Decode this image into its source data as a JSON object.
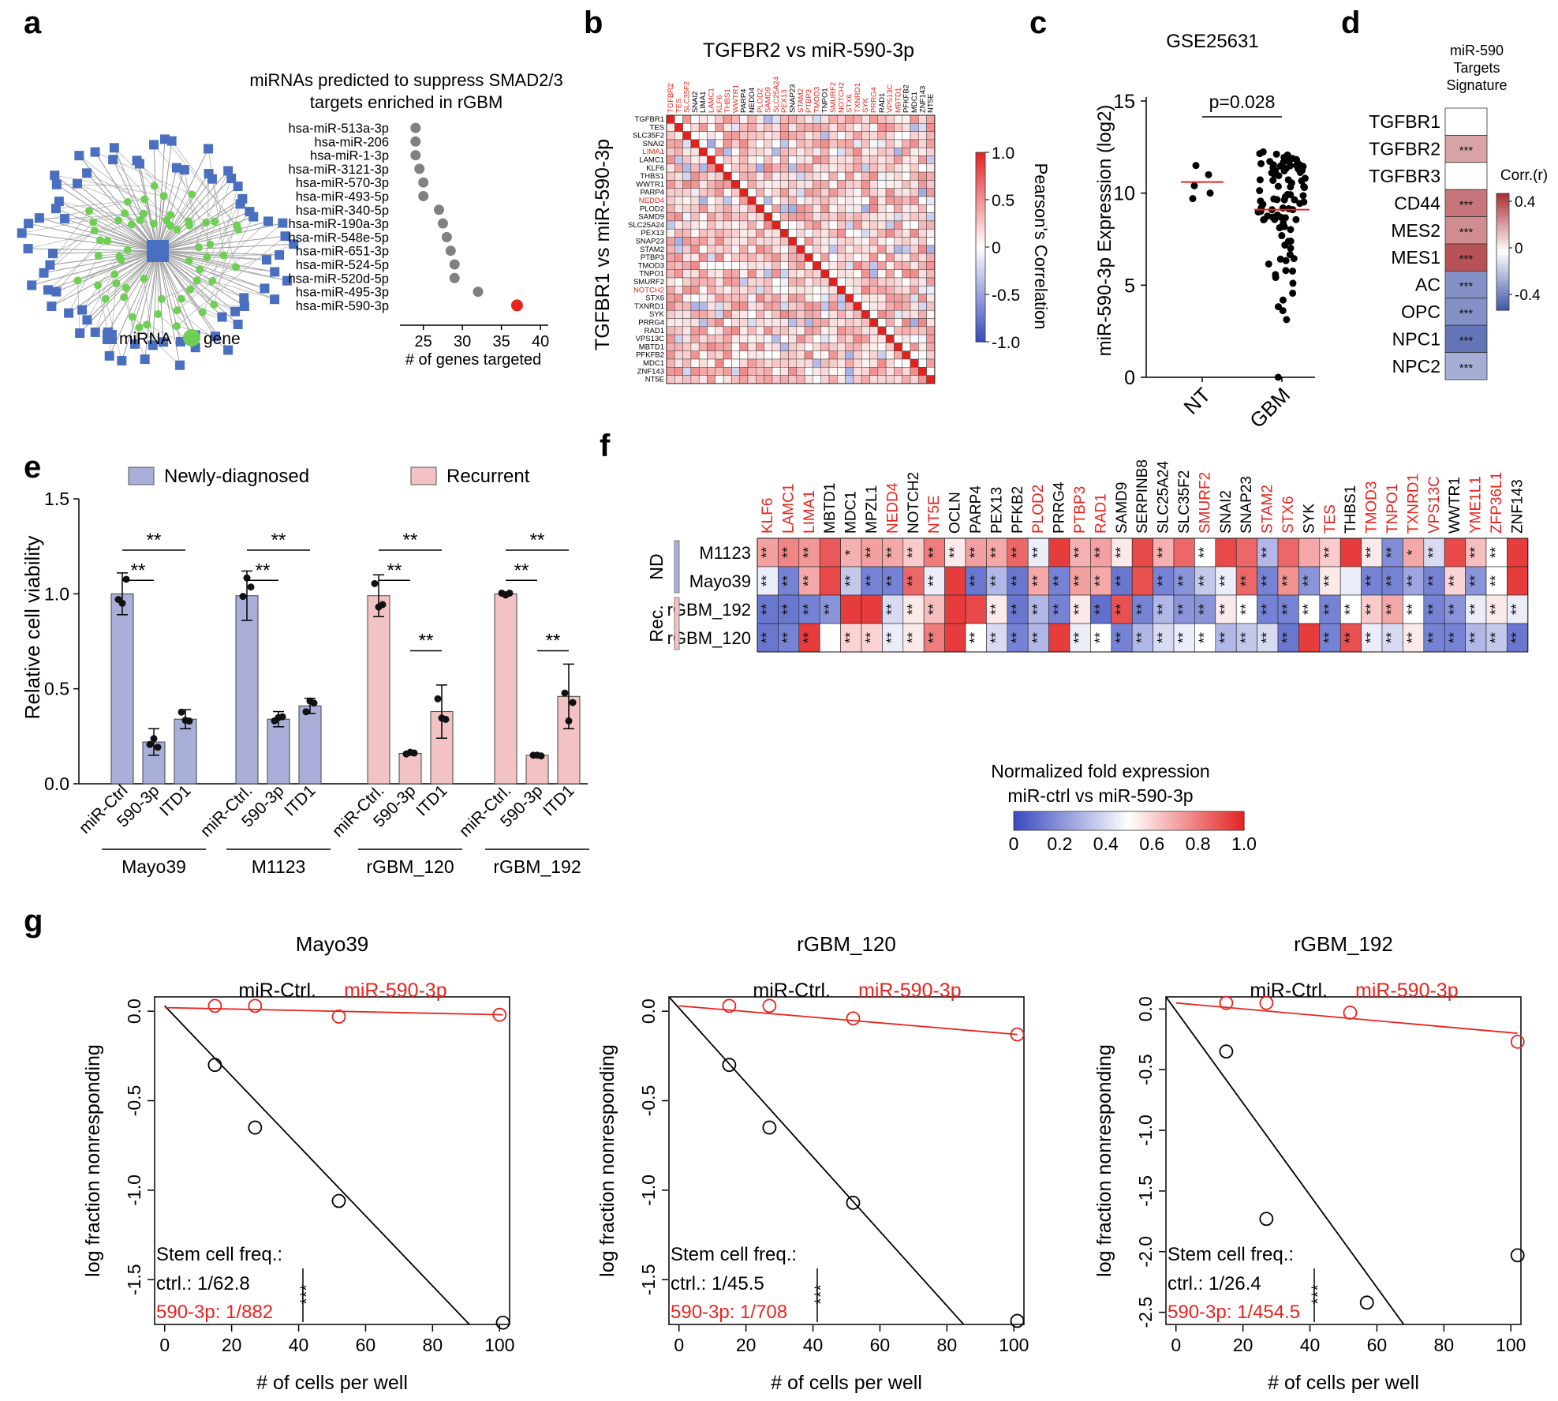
{
  "panel_labels": [
    "a",
    "b",
    "c",
    "d",
    "e",
    "f",
    "g"
  ],
  "colors": {
    "red": "#e8241f",
    "blue": "#3f4fa8",
    "grey": "#808080",
    "net_blue": "#4a6fc1",
    "net_green": "#6fcf55",
    "bar_nd": "#a9afd9",
    "bar_rec": "#f3c2c5"
  },
  "chart_data": [
    {
      "id": "a_network",
      "type": "network",
      "legend": {
        "mirna": "miRNA",
        "gene": "gene"
      }
    },
    {
      "id": "a_dot",
      "type": "scatter",
      "title_lines": [
        "miRNAs predicted to suppress SMAD2/3",
        "targets enriched in rGBM"
      ],
      "xlabel": "# of genes targeted",
      "xlim": [
        22,
        41
      ],
      "xticks": [
        25,
        30,
        35,
        40
      ],
      "categories": [
        "hsa-miR-513a-3p",
        "hsa-miR-206",
        "hsa-miR-1-3p",
        "hsa-miR-3121-3p",
        "hsa-miR-570-3p",
        "hsa-miR-493-5p",
        "hsa-miR-340-5p",
        "hsa-miR-190a-3p",
        "hsa-miR-548e-5p",
        "hsa-miR-651-3p",
        "hsa-miR-524-5p",
        "hsa-miR-520d-5p",
        "hsa-miR-495-3p",
        "hsa-miR-590-3p"
      ],
      "values": [
        24,
        24,
        24,
        24.5,
        25,
        25,
        27,
        27.5,
        28,
        28.5,
        29,
        29,
        32,
        37
      ],
      "highlight": "hsa-miR-590-3p"
    },
    {
      "id": "b",
      "type": "heatmap",
      "title": "TGFBR2 vs miR-590-3p",
      "ylabel": "TGFBR1 vs miR-590-3p",
      "labels": [
        "TGFBR1",
        "TES",
        "SLC35F2",
        "SNAI2",
        "LIMA1",
        "LAMC1",
        "KLF6",
        "THBS1",
        "WWTR1",
        "PARP4",
        "NEDD4",
        "PLOD2",
        "SAMD9",
        "SLC25A24",
        "PEX13",
        "SNAP23",
        "STAM2",
        "PTBP3",
        "TMOD3",
        "TNPO1",
        "SMURF2",
        "NOTCH2",
        "STX6",
        "TXNRD1",
        "SYK",
        "PRRG4",
        "RAD1",
        "VPS13C",
        "MBTD1",
        "PFKFB2",
        "MDC1",
        "ZNF143",
        "NT5E"
      ],
      "row_red": [
        "LIMA1",
        "NEDD4",
        "NOTCH2"
      ],
      "col_labels": [
        "TGFBR2",
        "TES",
        "SLC35F2",
        "SNAI2",
        "LIMA1",
        "LAMC1",
        "KLF6",
        "THBS1",
        "WWTR1",
        "PARP4",
        "NEDD4",
        "PLOD2",
        "SAMD9",
        "SLC25A24",
        "PEX13",
        "SNAP23",
        "STAM2",
        "PTBP3",
        "TMOD3",
        "TNPO1",
        "SMURF2",
        "NOTCH2",
        "STX6",
        "TXNRD1",
        "SYK",
        "PRRG4",
        "RAD1",
        "VPS13C",
        "MBTD1",
        "PFKFB2",
        "MDC1",
        "ZNF143",
        "NT5E"
      ],
      "col_red": [
        "TGFBR2",
        "TES",
        "SLC35F2",
        "LAMC1",
        "KLF6",
        "THBS1",
        "WWTR1",
        "PLOD2",
        "SAMD9",
        "SLC25A24",
        "PEX13",
        "STAM2",
        "PTBP3",
        "TMOD3",
        "SMURF2",
        "NOTCH2",
        "STX6",
        "TXNRD1",
        "SYK",
        "PRRG4",
        "VPS13C",
        "MBTD1"
      ],
      "colorbar": {
        "label": "Pearson's Correlation",
        "ticks": [
          "1.0",
          "0.5",
          "0",
          "-0.5",
          "-1.0"
        ],
        "range": [
          -1,
          1
        ]
      }
    },
    {
      "id": "c",
      "type": "scatter",
      "title": "GSE25631",
      "ylabel": "miR-590-3p Expression (log2)",
      "categories": [
        "NT",
        "GBM"
      ],
      "ylim": [
        0,
        15
      ],
      "yticks": [
        0,
        5,
        10,
        15
      ],
      "pvalue": "p=0.028",
      "NT": [
        11.5,
        11.0,
        10.4,
        10.0,
        9.7
      ],
      "GBM_median": 9.1,
      "NT_median": 10.6
    },
    {
      "id": "d",
      "type": "heatmap",
      "title_lines": [
        "miR-590",
        "Targets",
        "Signature"
      ],
      "rows": [
        "TGFBR1",
        "TGFBR2",
        "TGFBR3",
        "CD44",
        "MES2",
        "MES1",
        "AC",
        "OPC",
        "NPC1",
        "NPC2"
      ],
      "values": [
        0.0,
        0.2,
        0.0,
        0.3,
        0.25,
        0.38,
        -0.3,
        -0.3,
        -0.38,
        -0.22
      ],
      "marks": [
        "",
        "***",
        "",
        "***",
        "***",
        "***",
        "***",
        "***",
        "***",
        "***"
      ],
      "colorbar": {
        "label": "Corr.(r)",
        "ticks": [
          "0.4",
          "0",
          "-0.4"
        ],
        "range": [
          -0.45,
          0.45
        ]
      }
    },
    {
      "id": "e",
      "type": "bar",
      "ylabel": "Relative cell viability",
      "ylim": [
        0,
        1.5
      ],
      "yticks": [
        "0.0",
        "0.5",
        "1.0",
        "1.5"
      ],
      "legend": [
        "Newly-diagnosed",
        "Recurrent"
      ],
      "groups": [
        {
          "name": "Mayo39",
          "kind": "nd",
          "categories": [
            "miR-Ctrl",
            "590-3p",
            "ITD1"
          ],
          "values": [
            1.0,
            0.22,
            0.34
          ],
          "errors": [
            0.11,
            0.07,
            0.05
          ]
        },
        {
          "name": "M1123",
          "kind": "nd",
          "categories": [
            "miR-Ctrl.",
            "590-3p",
            "ITD1"
          ],
          "values": [
            0.99,
            0.34,
            0.41
          ],
          "errors": [
            0.13,
            0.04,
            0.04
          ]
        },
        {
          "name": "rGBM_120",
          "kind": "rec",
          "categories": [
            "miR-Ctrl.",
            "590-3p",
            "ITD1"
          ],
          "values": [
            0.99,
            0.16,
            0.38
          ],
          "errors": [
            0.11,
            0.01,
            0.14
          ]
        },
        {
          "name": "rGBM_192",
          "kind": "rec",
          "categories": [
            "miR-Ctrl.",
            "590-3p",
            "ITD1"
          ],
          "values": [
            1.0,
            0.15,
            0.46
          ],
          "errors": [
            0.01,
            0.01,
            0.17
          ]
        }
      ],
      "sig": "**"
    },
    {
      "id": "f",
      "type": "heatmap",
      "genes": [
        "KLF6",
        "LAMC1",
        "LIMA1",
        "MBTD1",
        "MDC1",
        "MPZL1",
        "NEDD4",
        "NOTCH2",
        "NT5E",
        "OCLN",
        "PARP4",
        "PEX13",
        "PFKB2",
        "PLOD2",
        "PRRG4",
        "PTBP3",
        "RAD1",
        "SAMD9",
        "SERPINB8",
        "SLC25A24",
        "SLC35F2",
        "SMURF2",
        "SNAI2",
        "SNAP23",
        "STAM2",
        "STX6",
        "SYK",
        "TES",
        "THBS1",
        "TMOD3",
        "TNPO1",
        "TXNRD1",
        "VPS13C",
        "WWTR1",
        "YME1L1",
        "ZFP36L1",
        "ZNF143"
      ],
      "genes_red": [
        "KLF6",
        "LAMC1",
        "LIMA1",
        "NEDD4",
        "NT5E",
        "PLOD2",
        "PTBP3",
        "RAD1",
        "SMURF2",
        "STAM2",
        "STX6",
        "TES",
        "TMOD3",
        "TNPO1",
        "TXNRD1",
        "VPS13C",
        "YME1L1",
        "ZFP36L1"
      ],
      "rows": [
        "M1123",
        "Mayo39",
        "rGBM_192",
        "rGBM_120"
      ],
      "row_groups": [
        {
          "label": "ND",
          "rows": [
            0,
            1
          ]
        },
        {
          "label": "Rec.",
          "rows": [
            2,
            3
          ]
        }
      ],
      "values": [
        [
          0.72,
          0.78,
          0.74,
          0.88,
          0.68,
          0.72,
          0.7,
          0.62,
          0.8,
          0.55,
          0.72,
          0.7,
          0.85,
          0.45,
          0.95,
          0.68,
          0.72,
          0.55,
          0.92,
          0.68,
          0.85,
          0.5,
          0.92,
          0.85,
          0.3,
          0.85,
          0.7,
          0.62,
          0.95,
          0.55,
          0.18,
          0.7,
          0.4,
          0.92,
          0.65,
          0.5,
          0.95
        ],
        [
          0.45,
          0.15,
          0.7,
          0.92,
          0.35,
          0.15,
          0.15,
          0.85,
          0.45,
          0.95,
          0.12,
          0.3,
          0.12,
          0.7,
          0.15,
          0.72,
          0.7,
          0.12,
          0.9,
          0.15,
          0.2,
          0.35,
          0.45,
          0.85,
          0.15,
          0.75,
          0.2,
          0.55,
          0.45,
          0.15,
          0.15,
          0.25,
          0.15,
          0.6,
          0.2,
          0.5,
          0.95
        ],
        [
          0.12,
          0.12,
          0.15,
          0.2,
          0.95,
          0.95,
          0.4,
          0.55,
          0.65,
          0.95,
          0.92,
          0.55,
          0.12,
          0.3,
          0.15,
          0.55,
          0.1,
          0.9,
          0.15,
          0.3,
          0.2,
          0.2,
          0.55,
          0.5,
          0.15,
          0.15,
          0.5,
          0.15,
          0.5,
          0.62,
          0.7,
          0.5,
          0.15,
          0.2,
          0.45,
          0.55,
          0.45
        ],
        [
          0.12,
          0.15,
          0.95,
          0.5,
          0.6,
          0.6,
          0.45,
          0.55,
          0.8,
          0.95,
          0.5,
          0.4,
          0.15,
          0.3,
          0.95,
          0.45,
          0.5,
          0.15,
          0.3,
          0.4,
          0.45,
          0.5,
          0.3,
          0.35,
          0.4,
          0.12,
          0.95,
          0.15,
          0.9,
          0.45,
          0.4,
          0.55,
          0.15,
          0.15,
          0.3,
          0.35,
          0.12
        ]
      ],
      "stars": [
        [
          "**",
          "**",
          "**",
          "",
          "*",
          "**",
          "**",
          "**",
          "**",
          "**",
          "**",
          "**",
          "**",
          "**",
          "",
          "**",
          "**",
          "**",
          "",
          "**",
          "",
          "**",
          "",
          "",
          "**",
          "",
          "",
          "**",
          "",
          "**",
          "**",
          "*",
          "**",
          "",
          "**",
          "**",
          ""
        ],
        [
          "**",
          "**",
          "**",
          "",
          "**",
          "**",
          "**",
          "**",
          "**",
          "",
          "**",
          "**",
          "**",
          "**",
          "**",
          "**",
          "**",
          "**",
          "",
          "**",
          "**",
          "**",
          "**",
          "**",
          "**",
          "**",
          "**",
          "**",
          "",
          "**",
          "**",
          "**",
          "**",
          "**",
          "**",
          "**",
          ""
        ],
        [
          "**",
          "**",
          "**",
          "**",
          "",
          "",
          "**",
          "**",
          "**",
          "",
          "",
          "**",
          "**",
          "**",
          "**",
          "**",
          "**",
          "**",
          "**",
          "**",
          "**",
          "**",
          "**",
          "**",
          "**",
          "**",
          "**",
          "**",
          "**",
          "**",
          "**",
          "**",
          "**",
          "**",
          "**",
          "**",
          "**"
        ],
        [
          "**",
          "**",
          "**",
          "",
          "**",
          "**",
          "**",
          "**",
          "**",
          "",
          "**",
          "**",
          "**",
          "**",
          "",
          "**",
          "**",
          "**",
          "**",
          "**",
          "**",
          "**",
          "**",
          "**",
          "**",
          "**",
          "",
          "**",
          "**",
          "**",
          "**",
          "**",
          "**",
          "**",
          "**",
          "**",
          "**"
        ]
      ],
      "colorbar": {
        "title": "Normalized fold expression",
        "subtitle": "miR-ctrl vs miR-590-3p",
        "ticks": [
          "0",
          "0.2",
          "0.4",
          "0.6",
          "0.8",
          "1.0"
        ],
        "range": [
          0,
          1
        ]
      }
    },
    {
      "id": "g",
      "type": "line",
      "ylabel": "log fraction nonresponding",
      "xlabel": "# of cells per well",
      "legend": [
        "miR-Ctrl.",
        "miR-590-3p"
      ],
      "freq_label": "Stem cell freq.:",
      "sig": "***",
      "plots": [
        {
          "title": "Mayo39",
          "ylim": [
            -1.75,
            0.08
          ],
          "yticks": [
            "0.0",
            "-0.5",
            "-1.0",
            "-1.5"
          ],
          "ytick_vals": [
            0,
            -0.5,
            -1.0,
            -1.5
          ],
          "ctrl_points": [
            [
              15,
              -0.3
            ],
            [
              27,
              -0.65
            ],
            [
              52,
              -1.06
            ],
            [
              101,
              -1.74
            ]
          ],
          "mir_points": [
            [
              15,
              0.03
            ],
            [
              27,
              0.03
            ],
            [
              52,
              -0.03
            ],
            [
              100,
              -0.02
            ]
          ],
          "ctrl_fit": [
            [
              0,
              0.03
            ],
            [
              91,
              -1.75
            ]
          ],
          "mir_fit": [
            [
              0,
              0.02
            ],
            [
              101,
              -0.02
            ]
          ],
          "ctrl_freq": "ctrl.: 1/62.8",
          "mir_freq": "590-3p: 1/882"
        },
        {
          "title": "rGBM_120",
          "ylim": [
            -1.75,
            0.08
          ],
          "yticks": [
            "0.0",
            "-0.5",
            "-1.0",
            "-1.5"
          ],
          "ytick_vals": [
            0,
            -0.5,
            -1.0,
            -1.5
          ],
          "ctrl_points": [
            [
              15,
              -0.3
            ],
            [
              27,
              -0.65
            ],
            [
              52,
              -1.07
            ],
            [
              101,
              -1.73
            ]
          ],
          "mir_points": [
            [
              15,
              0.03
            ],
            [
              27,
              0.03
            ],
            [
              52,
              -0.04
            ],
            [
              101,
              -0.13
            ]
          ],
          "ctrl_fit": [
            [
              -3,
              0.08
            ],
            [
              85,
              -1.75
            ]
          ],
          "mir_fit": [
            [
              0,
              0.03
            ],
            [
              101,
              -0.13
            ]
          ],
          "ctrl_freq": "ctrl.: 1/45.5",
          "mir_freq": "590-3p: 1/708"
        },
        {
          "title": "rGBM_192",
          "ylim": [
            -2.6,
            0.1
          ],
          "yticks": [
            "0.0",
            "-0.5",
            "-1.0",
            "-1.5",
            "-2.0",
            "-2.5"
          ],
          "ytick_vals": [
            0,
            -0.5,
            -1.0,
            -1.5,
            -2.0,
            -2.5
          ],
          "ctrl_points": [
            [
              15,
              -0.35
            ],
            [
              27,
              -1.73
            ],
            [
              57,
              -2.42
            ],
            [
              102,
              -2.03
            ]
          ],
          "mir_points": [
            [
              15,
              0.05
            ],
            [
              27,
              0.05
            ],
            [
              52,
              -0.03
            ],
            [
              102,
              -0.27
            ]
          ],
          "ctrl_fit": [
            [
              -3,
              0.1
            ],
            [
              68,
              -2.6
            ]
          ],
          "mir_fit": [
            [
              0,
              0.05
            ],
            [
              102,
              -0.2
            ]
          ],
          "ctrl_freq": "ctrl.: 1/26.4",
          "mir_freq": "590-3p: 1/454.5"
        }
      ]
    }
  ]
}
